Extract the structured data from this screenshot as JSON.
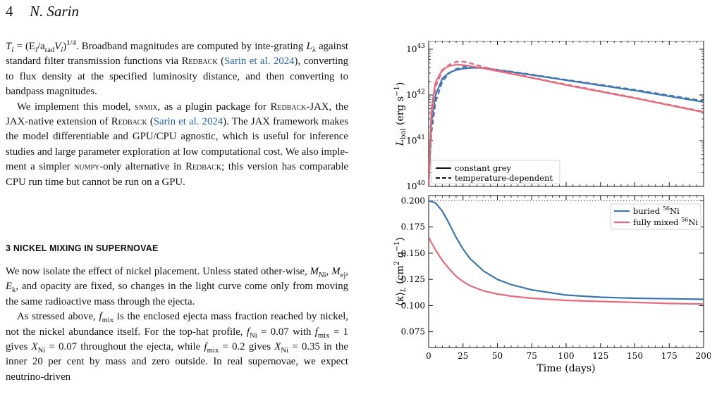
{
  "page": {
    "number": "4",
    "author": "N. Sarin"
  },
  "paragraphs": {
    "p1": {
      "a": "= (E",
      "b": "/a",
      "c": "V",
      "d": ")",
      "e": ". Broadband magnitudes are computed by inte-grating ",
      "f": " against standard filter transmission functions via ",
      "redback": "Redback",
      "cite": "Sarin et al. 2024",
      "g": "), converting to flux density at the specified luminosity distance, and then converting to bandpass magnitudes."
    },
    "p2": {
      "a": "We implement this model, ",
      "snmix": "snmix",
      "b": ", as a plugin package for ",
      "redback_jax": "Redback-JAX",
      "c": ", the JAX-native extension of ",
      "redback": "Redback",
      "cite": "Sarin et al. 2024",
      "d": "). The JAX framework makes the model differentiable and GPU/CPU agnostic, which is useful for inference studies and large parameter exploration at low computational cost. We also imple-ment a simpler ",
      "numpy": "numpy",
      "e": "-only alternative in ",
      "redback2": "Redback",
      "f": "; this version has comparable CPU run time but cannot be run on a GPU."
    },
    "section_title": "3  NICKEL MIXING IN SUPERNOVAE",
    "p3": {
      "a": "We now isolate the effect of nickel placement. Unless stated other-wise, ",
      "b": ", and opacity are fixed, so changes in the light curve come only from moving the same radioactive mass through the ejecta."
    },
    "p4": {
      "a": "As stressed above, ",
      "b": " is the enclosed ejecta mass fraction reached by nickel, not the nickel abundance itself. For the top-hat profile, ",
      "c": " = 0.07 with ",
      "d": " = 1 gives ",
      "e": " = 0.07 throughout the ejecta, while ",
      "f": " = 0.2 gives ",
      "g": " = 0.35 in the inner 20 per cent by mass and zero outside. In real supernovae, we expect neutrino-driven"
    }
  },
  "chart_data": [
    {
      "type": "line",
      "title": "",
      "xlabel": "",
      "ylabel": "L_bol (erg s^-1)",
      "yscale": "log",
      "ylim": [
        1e+40,
        1e+43
      ],
      "xlim": [
        0,
        200
      ],
      "ytick_labels": [
        "10^40",
        "10^41",
        "10^42",
        "10^43"
      ],
      "legend": {
        "placement": "lower-left",
        "entries": [
          "constant grey",
          "temperature-dependent"
        ]
      },
      "series": [
        {
          "color": "#3d75b0",
          "style": "solid",
          "x": [
            0,
            2,
            5,
            10,
            15,
            20,
            25,
            30,
            35,
            40,
            60,
            80,
            100,
            150,
            200
          ],
          "y": [
            1e+40,
            2.6e+41,
            1e+42,
            2.3e+42,
            3.1e+42,
            3.5e+42,
            3.75e+42,
            3.9e+42,
            3.92e+42,
            3.85e+42,
            3.2e+42,
            2.6e+42,
            2.1e+42,
            1.25e+42,
            7e+41
          ]
        },
        {
          "color": "#3d75b0",
          "style": "dashed",
          "x": [
            0,
            2,
            5,
            10,
            15,
            20,
            25,
            30,
            35,
            40,
            60,
            80,
            100,
            150,
            200
          ],
          "y": [
            1e+40,
            1.5e+41,
            7e+41,
            2e+42,
            3e+42,
            3.7e+42,
            4.1e+42,
            4.2e+42,
            4.05e+42,
            3.9e+42,
            3.25e+42,
            2.65e+42,
            2.15e+42,
            1.3e+42,
            7.4e+41
          ]
        },
        {
          "color": "#e66a7e",
          "style": "solid",
          "x": [
            0,
            2,
            5,
            10,
            15,
            20,
            25,
            30,
            40,
            60,
            80,
            100,
            150,
            200
          ],
          "y": [
            1e+40,
            5e+41,
            1.9e+42,
            3.6e+42,
            4.3e+42,
            4.6e+42,
            4.5e+42,
            4.3e+42,
            3.8e+42,
            2.9e+42,
            2.2e+42,
            1.65e+42,
            8.5e+41,
            4.2e+41
          ]
        },
        {
          "color": "#e66a7e",
          "style": "dashed",
          "x": [
            0,
            2,
            5,
            10,
            15,
            20,
            25,
            30,
            40,
            60,
            80,
            100,
            150,
            200
          ],
          "y": [
            1e+40,
            3e+41,
            1.5e+42,
            3.4e+42,
            4.6e+42,
            5.3e+42,
            5.4e+42,
            5e+42,
            4.1e+42,
            3e+42,
            2.25e+42,
            1.7e+42,
            8.7e+41,
            4.3e+41
          ]
        }
      ]
    },
    {
      "type": "line",
      "title": "",
      "xlabel": "Time (days)",
      "ylabel": "⟨κ⟩_L (cm^2 g^-1)",
      "ylim": [
        0.06,
        0.205
      ],
      "xlim": [
        0,
        200
      ],
      "x_ticks": [
        0,
        25,
        50,
        75,
        100,
        125,
        150,
        175,
        200
      ],
      "y_ticks": [
        0.075,
        0.1,
        0.125,
        0.15,
        0.175,
        0.2
      ],
      "x_tick_labels": [
        "0",
        "25",
        "50",
        "75",
        "100",
        "125",
        "150",
        "175",
        "200"
      ],
      "y_tick_labels": [
        "0.075",
        "0.100",
        "0.125",
        "0.150",
        "0.175",
        "0.200"
      ],
      "reference_line": {
        "y": 0.2,
        "style": "dotted"
      },
      "legend": {
        "placement": "top-right",
        "entries": [
          "buried 56Ni",
          "fully mixed 56Ni"
        ]
      },
      "series": [
        {
          "name": "buried 56Ni",
          "color": "#3d75b0",
          "x": [
            0,
            5,
            10,
            15,
            20,
            25,
            30,
            40,
            50,
            60,
            75,
            100,
            125,
            150,
            175,
            200
          ],
          "y": [
            0.2,
            0.198,
            0.19,
            0.178,
            0.165,
            0.154,
            0.145,
            0.133,
            0.125,
            0.12,
            0.115,
            0.11,
            0.108,
            0.107,
            0.1065,
            0.106
          ]
        },
        {
          "name": "fully mixed 56Ni",
          "color": "#e66a7e",
          "x": [
            0,
            5,
            10,
            15,
            20,
            25,
            30,
            40,
            50,
            60,
            75,
            100,
            125,
            150,
            175,
            200
          ],
          "y": [
            0.165,
            0.153,
            0.143,
            0.135,
            0.128,
            0.123,
            0.119,
            0.114,
            0.111,
            0.109,
            0.107,
            0.105,
            0.104,
            0.103,
            0.102,
            0.1015
          ]
        }
      ]
    }
  ]
}
